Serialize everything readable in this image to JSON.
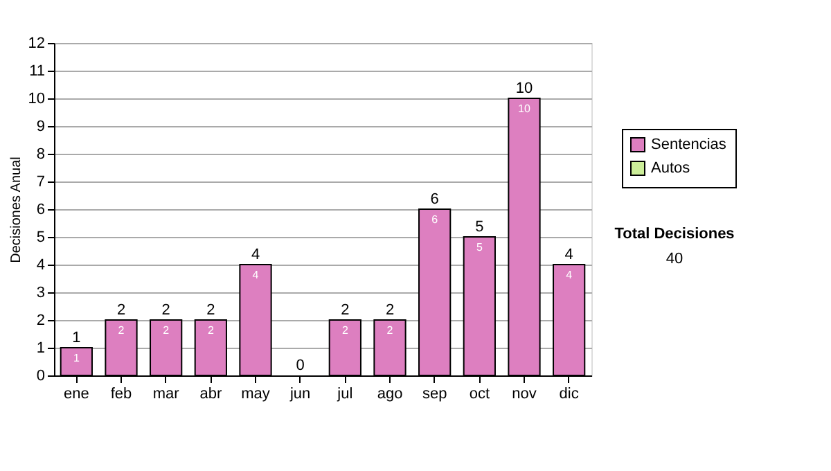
{
  "chart_data": {
    "type": "bar",
    "ylabel": "Decisiones Anual",
    "categories": [
      "ene",
      "feb",
      "mar",
      "abr",
      "may",
      "jun",
      "jul",
      "ago",
      "sep",
      "oct",
      "nov",
      "dic"
    ],
    "series": [
      {
        "name": "Sentencias",
        "color": "#dd7fc0",
        "values": [
          1,
          2,
          2,
          2,
          4,
          0,
          2,
          2,
          6,
          5,
          10,
          4
        ],
        "value_labels": [
          "1",
          "2",
          "2",
          "2",
          "4",
          null,
          "2",
          "2",
          "6",
          "5",
          "10",
          "4"
        ]
      },
      {
        "name": "Autos",
        "color": "#ccee99",
        "values": [
          0,
          0,
          0,
          0,
          0,
          0,
          0,
          0,
          0,
          0,
          0,
          0
        ]
      }
    ],
    "stacked": true,
    "totals": [
      "1",
      "2",
      "2",
      "2",
      "4",
      "0",
      "2",
      "2",
      "6",
      "5",
      "10",
      "4"
    ],
    "ylim": [
      0,
      12
    ],
    "yticks": [
      0,
      1,
      2,
      3,
      4,
      5,
      6,
      7,
      8,
      9,
      10,
      11,
      12
    ],
    "grid": "y",
    "legend": "right",
    "annotations": [
      "Total Decisiones",
      "40"
    ]
  }
}
